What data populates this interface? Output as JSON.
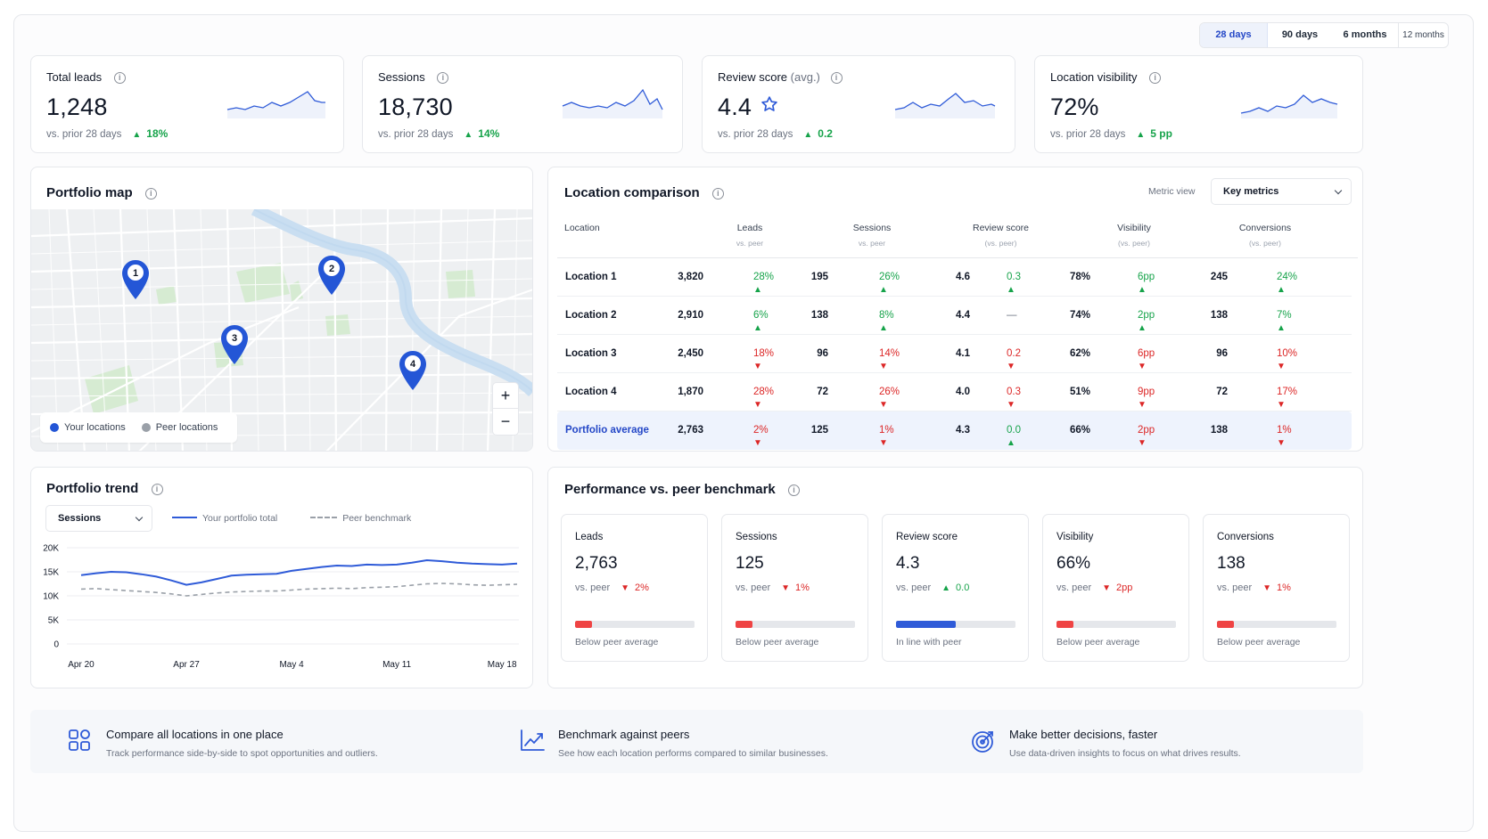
{
  "periods": [
    "28 days",
    "90 days",
    "6 months",
    "12 months"
  ],
  "kpis": [
    {
      "title": "Total leads",
      "title_suffix": "",
      "value": "1,248",
      "compare": "vs. prior 28 days",
      "delta": "18%",
      "direction": "up"
    },
    {
      "title": "Sessions",
      "title_suffix": "",
      "value": "18,730",
      "compare": "vs. prior 28 days",
      "delta": "14%",
      "direction": "up"
    },
    {
      "title": "Review score",
      "title_suffix": "(avg.)",
      "value": "4.4",
      "compare": "vs. prior 28 days",
      "delta": "0.2",
      "direction": "up",
      "icon": "star-icon"
    },
    {
      "title": "Location visibility",
      "title_suffix": "",
      "value": "72%",
      "compare": "vs. prior 28 days",
      "delta": "5 pp",
      "direction": "up"
    }
  ],
  "map": {
    "title": "Portfolio map",
    "pins": [
      "1",
      "2",
      "3",
      "4"
    ],
    "legend": {
      "yours": "Your locations",
      "peers": "Peer locations"
    },
    "zoom_in": "+",
    "zoom_out": "−"
  },
  "comparison": {
    "title": "Location comparison",
    "metric_view_label": "Metric view",
    "metric_view_value": "Key metrics",
    "columns": [
      {
        "label": "Location",
        "sub": ""
      },
      {
        "label": "Leads",
        "sub": "vs. peer"
      },
      {
        "label": "Sessions",
        "sub": "vs. peer"
      },
      {
        "label": "Review score",
        "sub": "(vs. peer)"
      },
      {
        "label": "Visibility",
        "sub": "(vs. peer)"
      },
      {
        "label": "Conversions",
        "sub": "(vs. peer)"
      }
    ],
    "rows": [
      {
        "name": "Location 1",
        "cells": [
          [
            "3,820",
            "28%",
            "up"
          ],
          [
            "195",
            "26%",
            "up"
          ],
          [
            "4.6",
            "0.3",
            "up"
          ],
          [
            "78%",
            "6pp",
            "up"
          ],
          [
            "245",
            "24%",
            "up"
          ]
        ]
      },
      {
        "name": "Location 2",
        "cells": [
          [
            "2,910",
            "6%",
            "up"
          ],
          [
            "138",
            "8%",
            "up"
          ],
          [
            "4.4",
            "—",
            "flat"
          ],
          [
            "74%",
            "2pp",
            "up"
          ],
          [
            "138",
            "7%",
            "up"
          ]
        ]
      },
      {
        "name": "Location 3",
        "cells": [
          [
            "2,450",
            "18%",
            "down"
          ],
          [
            "96",
            "14%",
            "down"
          ],
          [
            "4.1",
            "0.2",
            "down"
          ],
          [
            "62%",
            "6pp",
            "down"
          ],
          [
            "96",
            "10%",
            "down"
          ]
        ]
      },
      {
        "name": "Location 4",
        "cells": [
          [
            "1,870",
            "28%",
            "down"
          ],
          [
            "72",
            "26%",
            "down"
          ],
          [
            "4.0",
            "0.3",
            "down"
          ],
          [
            "51%",
            "9pp",
            "down"
          ],
          [
            "72",
            "17%",
            "down"
          ]
        ]
      },
      {
        "name": "Portfolio average",
        "cells": [
          [
            "2,763",
            "2%",
            "down"
          ],
          [
            "125",
            "1%",
            "down"
          ],
          [
            "4.3",
            "0.0",
            "up"
          ],
          [
            "66%",
            "2pp",
            "down"
          ],
          [
            "138",
            "1%",
            "down"
          ]
        ]
      }
    ]
  },
  "trend": {
    "title": "Portfolio trend",
    "select_value": "Sessions",
    "legend_total": "Your portfolio total",
    "legend_peer": "Peer benchmark"
  },
  "chart_data": {
    "type": "line",
    "x": [
      "Apr 20",
      "Apr 21",
      "Apr 22",
      "Apr 23",
      "Apr 24",
      "Apr 25",
      "Apr 26",
      "Apr 27",
      "Apr 28",
      "Apr 29",
      "Apr 30",
      "May 1",
      "May 2",
      "May 3",
      "May 4",
      "May 5",
      "May 6",
      "May 7",
      "May 8",
      "May 9",
      "May 10",
      "May 11",
      "May 12",
      "May 13",
      "May 14",
      "May 15",
      "May 16",
      "May 17",
      "May 18",
      "May 19"
    ],
    "tick_labels": [
      "Apr 20",
      "Apr 27",
      "May 4",
      "May 11",
      "May 18"
    ],
    "y_ticks": [
      "20K",
      "15K",
      "10K",
      "5K",
      "0"
    ],
    "ylim": [
      0,
      20000
    ],
    "series": [
      {
        "name": "Your portfolio total",
        "style": "solid",
        "color": "#2f5bd8",
        "values": [
          14300,
          14700,
          15000,
          14900,
          14500,
          14000,
          13200,
          12300,
          12800,
          13500,
          14200,
          14400,
          14500,
          14600,
          15200,
          15600,
          16000,
          16300,
          16200,
          16500,
          16400,
          16500,
          16900,
          17400,
          17200,
          16900,
          16700,
          16600,
          16500,
          16700
        ]
      },
      {
        "name": "Peer benchmark",
        "style": "dashed",
        "color": "#9aa0a8",
        "values": [
          11400,
          11500,
          11300,
          11100,
          10900,
          10700,
          10400,
          10000,
          10300,
          10600,
          10800,
          10900,
          11000,
          11000,
          11200,
          11400,
          11500,
          11600,
          11500,
          11700,
          11800,
          11900,
          12200,
          12500,
          12600,
          12500,
          12300,
          12200,
          12300,
          12400
        ]
      }
    ],
    "grid": true
  },
  "benchmark": {
    "title": "Performance vs. peer benchmark",
    "cards": [
      {
        "title": "Leads",
        "value": "2,763",
        "compare": "vs. peer",
        "delta": "2%",
        "direction": "down",
        "fill": 0.14,
        "color": "#ef4444",
        "status": "Below peer average"
      },
      {
        "title": "Sessions",
        "value": "125",
        "compare": "vs. peer",
        "delta": "1%",
        "direction": "down",
        "fill": 0.14,
        "color": "#ef4444",
        "status": "Below peer average"
      },
      {
        "title": "Review score",
        "value": "4.3",
        "compare": "vs. peer",
        "delta": "0.0",
        "direction": "up",
        "fill": 0.5,
        "color": "#2f5bd8",
        "status": "In line with peer"
      },
      {
        "title": "Visibility",
        "value": "66%",
        "compare": "vs. peer",
        "delta": "2pp",
        "direction": "down",
        "fill": 0.14,
        "color": "#ef4444",
        "status": "Below peer average"
      },
      {
        "title": "Conversions",
        "value": "138",
        "compare": "vs. peer",
        "delta": "1%",
        "direction": "down",
        "fill": 0.14,
        "color": "#ef4444",
        "status": "Below peer average"
      }
    ]
  },
  "features": [
    {
      "icon": "grid-icon",
      "title": "Compare all locations in one place",
      "desc": "Track performance side-by-side to spot opportunities and outliers."
    },
    {
      "icon": "trend-chart-icon",
      "title": "Benchmark against peers",
      "desc": "See how each location performs compared to similar businesses."
    },
    {
      "icon": "target-icon",
      "title": "Make better decisions, faster",
      "desc": "Use data-driven insights to focus on what drives results."
    }
  ],
  "colors": {
    "accent": "#2f5bd8",
    "up": "#16a34a",
    "down": "#dc2626",
    "peer": "#9aa0a8"
  }
}
